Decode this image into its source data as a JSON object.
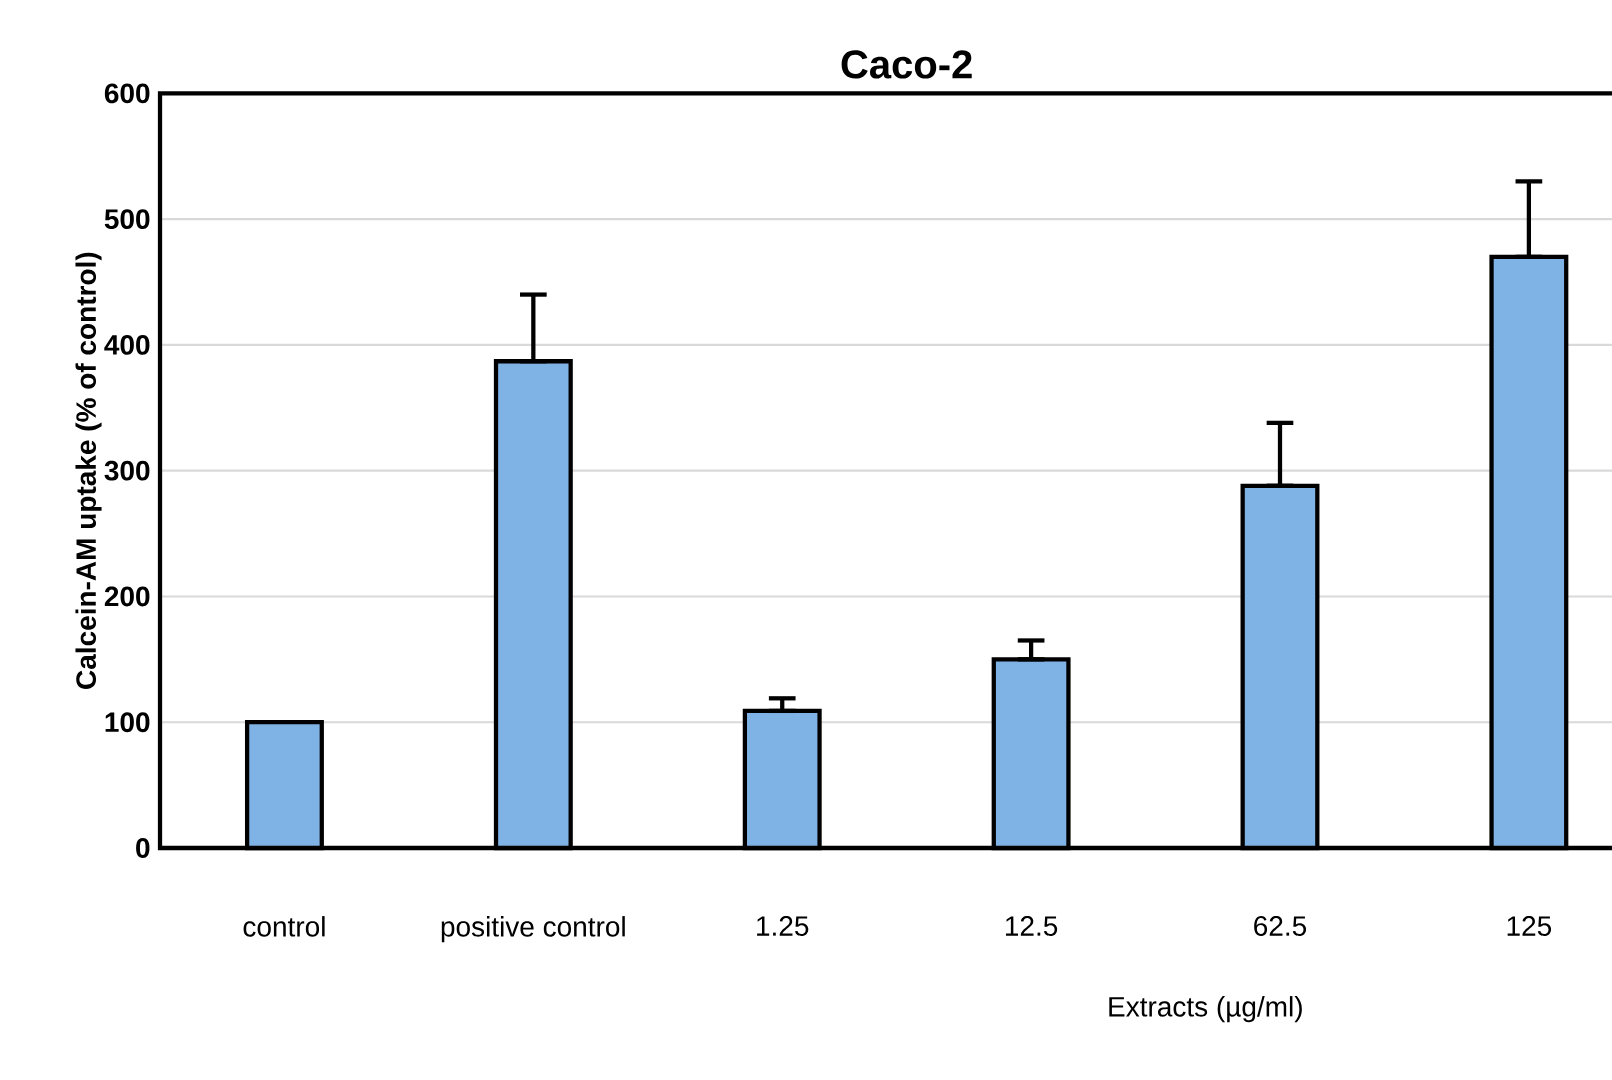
{
  "chart_data": {
    "type": "bar",
    "title": "Caco-2",
    "xlabel": "Extracts (µg/ml)",
    "ylabel": "Calcein-AM uptake (% of control)",
    "categories": [
      "control",
      "positive control",
      "1.25",
      "12.5",
      "62.5",
      "125"
    ],
    "values": [
      100,
      387,
      109,
      150,
      288,
      470
    ],
    "errors": [
      null,
      53,
      10,
      15,
      50,
      60
    ],
    "color": "#7fb2e5",
    "ylim": [
      0,
      600
    ],
    "yticks": [
      0,
      100,
      200,
      300,
      400,
      500,
      600
    ],
    "grid": "y"
  }
}
